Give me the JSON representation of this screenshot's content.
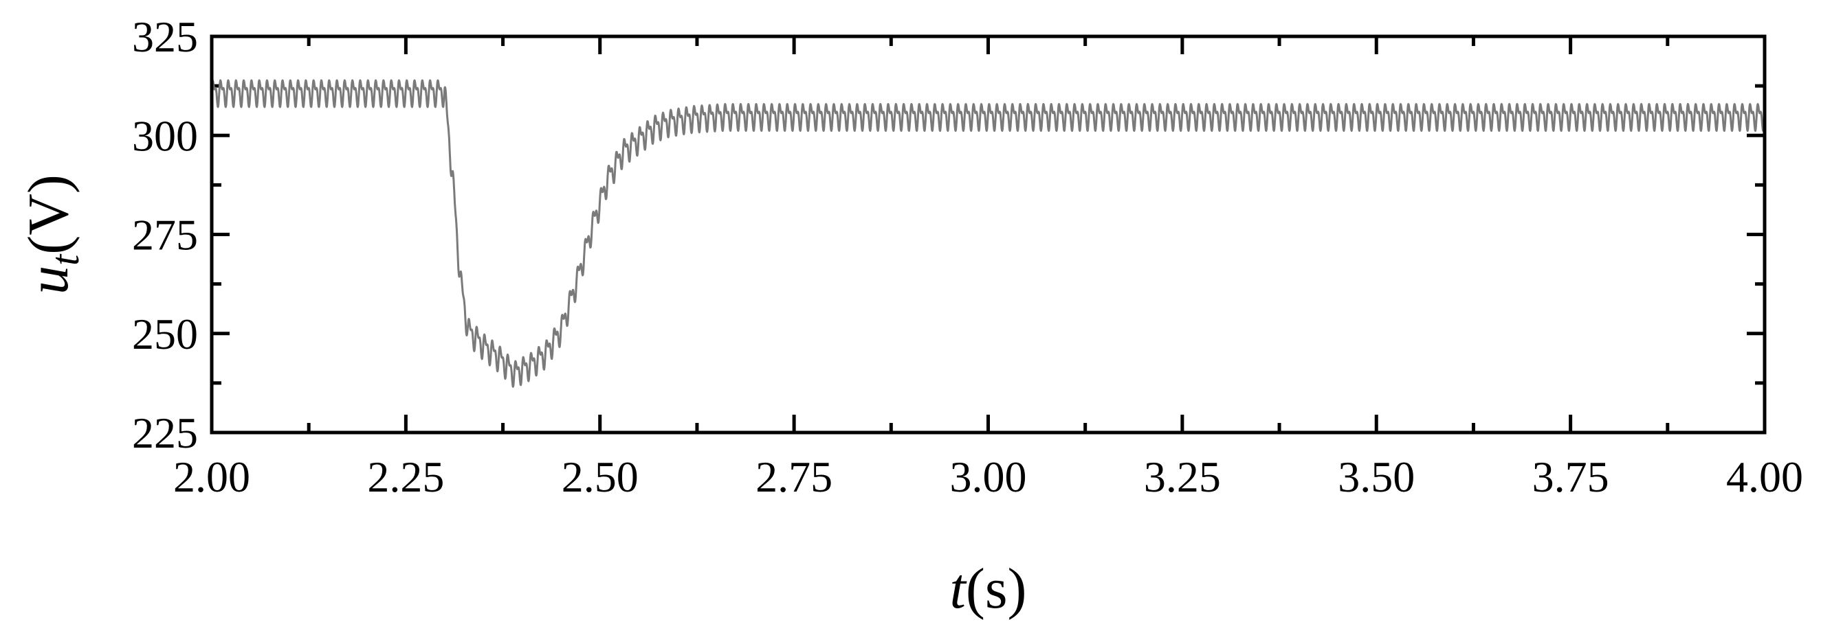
{
  "chart_data": {
    "type": "line",
    "title": "",
    "xlabel": {
      "symbol": "t",
      "unit": "(s)"
    },
    "ylabel": {
      "symbol": "u",
      "subscript": "t",
      "unit": "(V)"
    },
    "xlim": [
      2.0,
      4.0
    ],
    "ylim": [
      225,
      325
    ],
    "xticks": [
      2.0,
      2.25,
      2.5,
      2.75,
      3.0,
      3.25,
      3.5,
      3.75,
      4.0
    ],
    "xtick_labels": [
      "2.00",
      "2.25",
      "2.50",
      "2.75",
      "3.00",
      "3.25",
      "3.50",
      "3.75",
      "4.00"
    ],
    "yticks": [
      225,
      250,
      275,
      300,
      325
    ],
    "ytick_labels": [
      "225",
      "250",
      "275",
      "300",
      "325"
    ],
    "grid": false,
    "legend": "none",
    "colors": {
      "line": "#7a7a7a",
      "axes": "#000000"
    },
    "ripple": {
      "frequency_hz": 100,
      "amplitude_v": 2.5
    },
    "series": [
      {
        "x": [
          2.0,
          2.29,
          2.3,
          2.31,
          2.32,
          2.33,
          2.34,
          2.35,
          2.37,
          2.39,
          2.41,
          2.43,
          2.45,
          2.47,
          2.49,
          2.51,
          2.53,
          2.55,
          2.57,
          2.59,
          2.62,
          2.66,
          2.75,
          3.0,
          3.5,
          4.0
        ],
        "y": [
          311,
          311,
          311,
          290,
          264,
          251,
          249,
          247,
          244,
          240,
          242,
          245,
          251,
          263,
          277,
          289,
          296,
          299,
          302,
          303.5,
          304.5,
          305,
          305,
          305,
          305,
          305
        ]
      }
    ]
  }
}
